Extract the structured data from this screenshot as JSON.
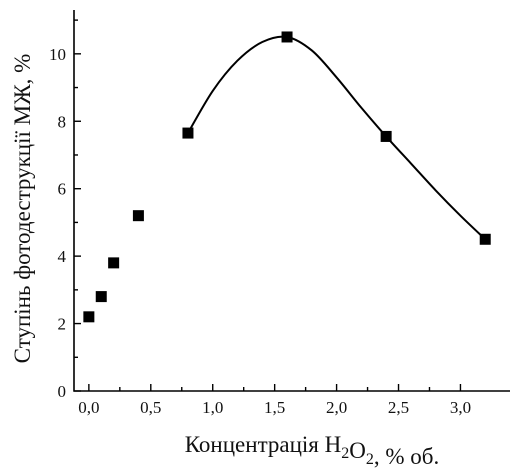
{
  "chart_data": {
    "type": "scatter",
    "xlabel_main": "Концентрація H",
    "xlabel_sub1": "2",
    "xlabel_mid": "O",
    "xlabel_sub2": "2",
    "xlabel_tail": ", % об.",
    "ylabel": "Ступінь фотодеструкції МЖ, %",
    "xlim": [
      -0.12,
      3.4
    ],
    "ylim": [
      0,
      11.3
    ],
    "xticks": [
      0.0,
      0.5,
      1.0,
      1.5,
      2.0,
      2.5,
      3.0
    ],
    "xtick_labels": [
      "0,0",
      "0,5",
      "1,0",
      "1,5",
      "2,0",
      "2,5",
      "3,0"
    ],
    "yticks": [
      0,
      2,
      4,
      6,
      8,
      10
    ],
    "ytick_labels": [
      "0",
      "2",
      "4",
      "6",
      "8",
      "10"
    ],
    "series": [
      {
        "points": [
          {
            "x": 0.0,
            "y": 2.2
          },
          {
            "x": 0.1,
            "y": 2.8
          },
          {
            "x": 0.2,
            "y": 3.8
          },
          {
            "x": 0.4,
            "y": 5.2
          },
          {
            "x": 0.8,
            "y": 7.65
          },
          {
            "x": 1.6,
            "y": 10.5
          },
          {
            "x": 2.4,
            "y": 7.55
          },
          {
            "x": 3.2,
            "y": 4.5
          }
        ],
        "curve": [
          {
            "x": 0.8,
            "y": 7.65
          },
          {
            "x": 1.0,
            "y": 8.9
          },
          {
            "x": 1.2,
            "y": 9.8
          },
          {
            "x": 1.4,
            "y": 10.35
          },
          {
            "x": 1.6,
            "y": 10.5
          },
          {
            "x": 1.8,
            "y": 10.1
          },
          {
            "x": 2.0,
            "y": 9.3
          },
          {
            "x": 2.2,
            "y": 8.4
          },
          {
            "x": 2.4,
            "y": 7.55
          },
          {
            "x": 2.6,
            "y": 6.75
          },
          {
            "x": 2.8,
            "y": 5.95
          },
          {
            "x": 3.0,
            "y": 5.2
          },
          {
            "x": 3.2,
            "y": 4.5
          }
        ]
      }
    ],
    "grid": false,
    "marker": "square"
  }
}
